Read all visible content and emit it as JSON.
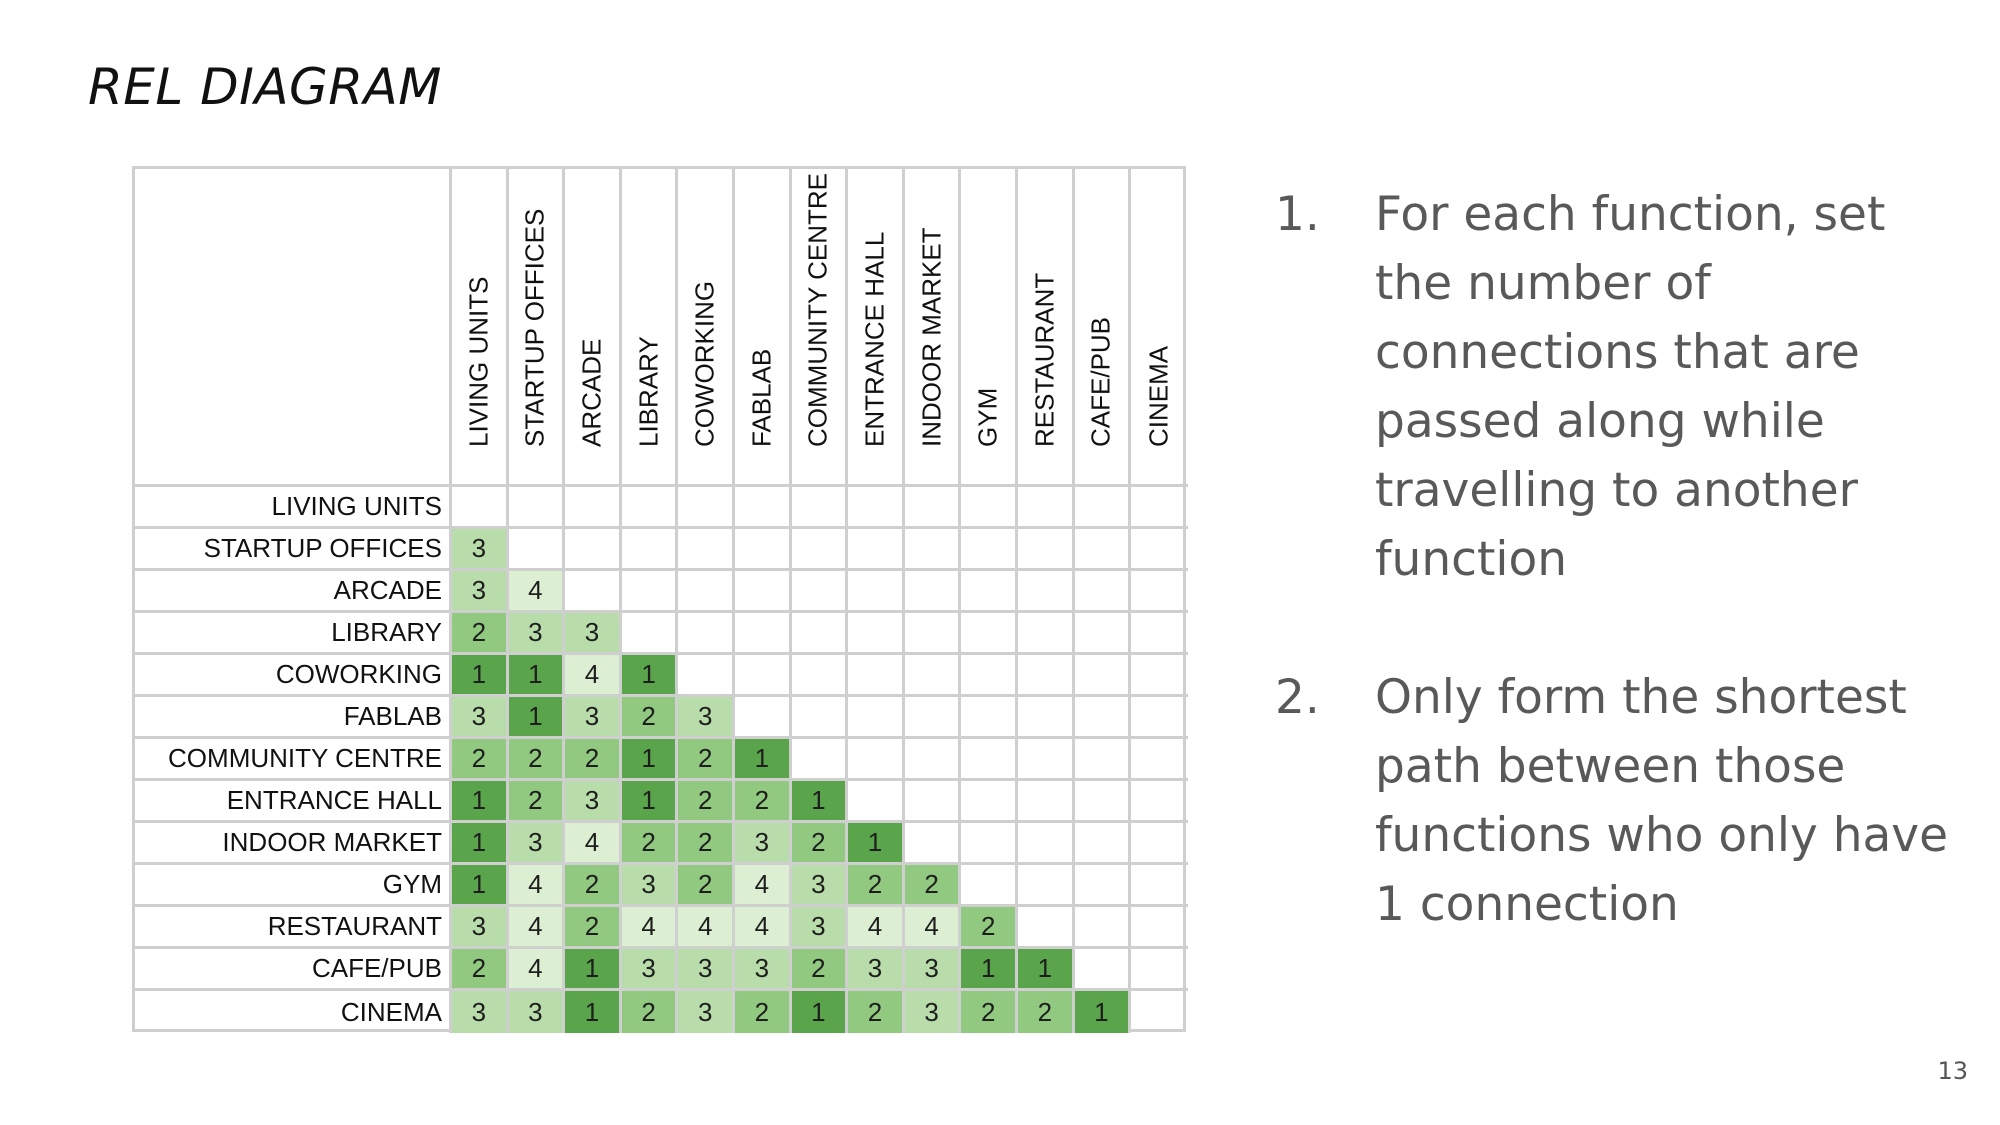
{
  "slide": {
    "title": "REL DIAGRAM",
    "page_number": "13"
  },
  "matrix": {
    "functions": [
      "LIVING UNITS",
      "STARTUP OFFICES",
      "ARCADE",
      "LIBRARY",
      "COWORKING",
      "FABLAB",
      "COMMUNITY CENTRE",
      "ENTRANCE HALL",
      "INDOOR MARKET",
      "GYM",
      "RESTAURANT",
      "CAFE/PUB",
      "CINEMA"
    ],
    "rows": [
      [],
      [
        3
      ],
      [
        3,
        4
      ],
      [
        2,
        3,
        3
      ],
      [
        1,
        1,
        4,
        1
      ],
      [
        3,
        1,
        3,
        2,
        3
      ],
      [
        2,
        2,
        2,
        1,
        2,
        1
      ],
      [
        1,
        2,
        3,
        1,
        2,
        2,
        1
      ],
      [
        1,
        3,
        4,
        2,
        2,
        3,
        2,
        1
      ],
      [
        1,
        4,
        2,
        3,
        2,
        4,
        3,
        2,
        2
      ],
      [
        3,
        4,
        2,
        4,
        4,
        4,
        3,
        4,
        4,
        2
      ],
      [
        2,
        4,
        1,
        3,
        3,
        3,
        2,
        3,
        3,
        1,
        1
      ],
      [
        3,
        3,
        1,
        2,
        3,
        2,
        1,
        2,
        3,
        2,
        2,
        1
      ]
    ],
    "colors": {
      "1": "#5aa54b",
      "2": "#90c97f",
      "3": "#b9dcab",
      "4": "#dcefd3",
      "grid": "#cfcfcf"
    }
  },
  "instructions": [
    {
      "number": "1.",
      "text": "For each function, set the number of connections that are passed along while travelling to another function"
    },
    {
      "number": "2.",
      "text": "Only form the shortest path between those functions who only have 1 connection"
    }
  ]
}
